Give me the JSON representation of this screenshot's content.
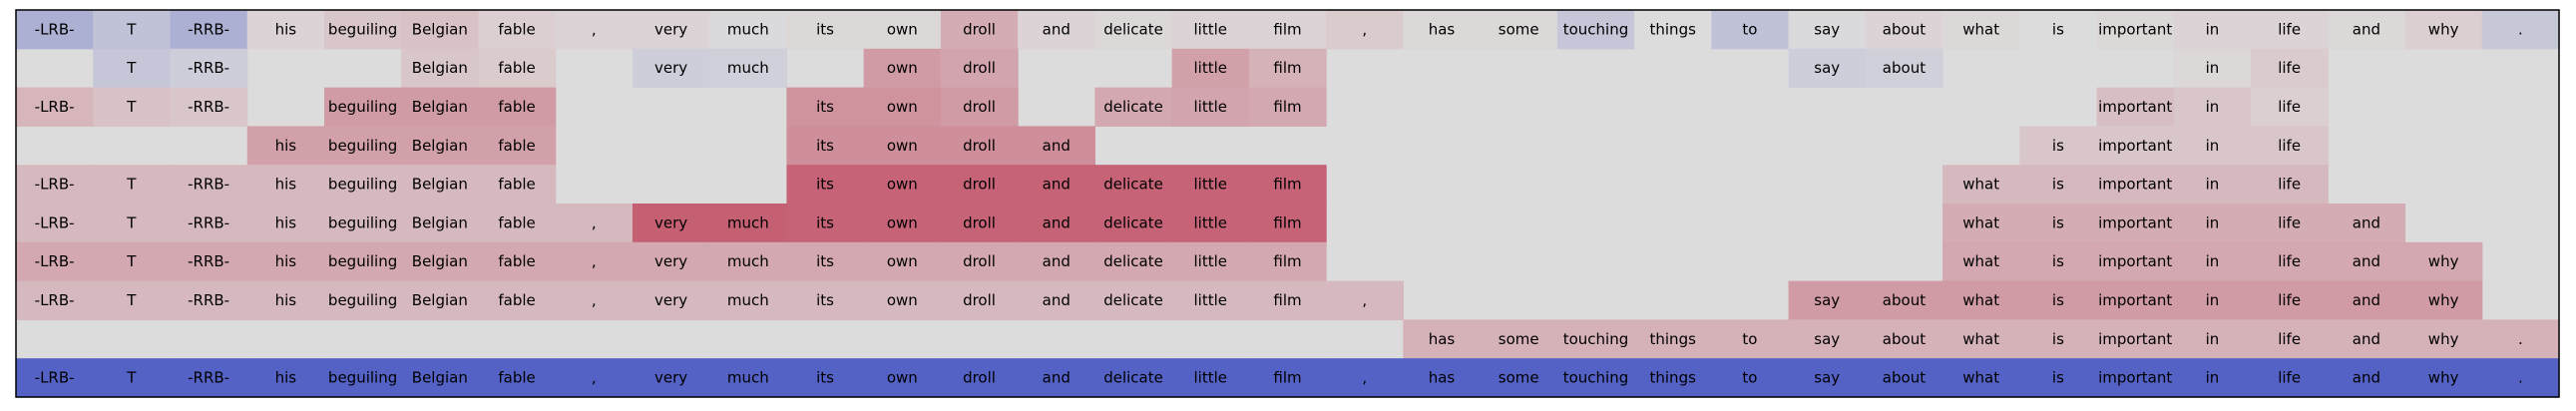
{
  "chart_data": {
    "type": "heatmap",
    "tokens": [
      "-LRB-",
      "T",
      "-RRB-",
      "his",
      "beguiling",
      "Belgian",
      "fable",
      ",",
      "very",
      "much",
      "its",
      "own",
      "droll",
      "and",
      "delicate",
      "little",
      "film",
      ",",
      "has",
      "some",
      "touching",
      "things",
      "to",
      "say",
      "about",
      "what",
      "is",
      "important",
      "in",
      "life",
      "and",
      "why",
      "."
    ],
    "rows": [
      {
        "visible": [
          1,
          1,
          1,
          1,
          1,
          1,
          1,
          1,
          1,
          1,
          1,
          1,
          1,
          1,
          1,
          1,
          1,
          1,
          1,
          1,
          1,
          1,
          1,
          1,
          1,
          1,
          1,
          1,
          1,
          1,
          1,
          1,
          1
        ],
        "scores": [
          -0.3,
          -0.18,
          -0.3,
          0.04,
          0.1,
          0.12,
          0.06,
          0.04,
          0.04,
          -0.02,
          0.02,
          0.02,
          0.22,
          0.04,
          0.02,
          0.04,
          0.04,
          0.08,
          0.02,
          0.02,
          -0.15,
          0.0,
          -0.18,
          -0.02,
          0.04,
          0.02,
          0.0,
          0.02,
          0.04,
          0.04,
          0.02,
          0.06,
          -0.14
        ]
      },
      {
        "visible": [
          0,
          1,
          1,
          0,
          0,
          1,
          1,
          0,
          1,
          1,
          0,
          1,
          1,
          0,
          0,
          1,
          1,
          0,
          0,
          0,
          0,
          0,
          0,
          1,
          1,
          0,
          0,
          0,
          1,
          1,
          0,
          0,
          0
        ],
        "scores": [
          0,
          -0.15,
          -0.1,
          0,
          0,
          0.1,
          0.08,
          0,
          -0.1,
          -0.08,
          0,
          0.3,
          0.26,
          0,
          0,
          0.28,
          0.2,
          0,
          0,
          0,
          0,
          0,
          0,
          -0.1,
          -0.08,
          0,
          0,
          0,
          0.02,
          0.08,
          0,
          0,
          0
        ]
      },
      {
        "visible": [
          1,
          1,
          1,
          0,
          1,
          1,
          1,
          0,
          0,
          0,
          1,
          1,
          1,
          0,
          1,
          1,
          1,
          0,
          0,
          0,
          0,
          0,
          0,
          0,
          0,
          0,
          0,
          1,
          1,
          1,
          0,
          0,
          0
        ],
        "scores": [
          0.18,
          0.12,
          0.1,
          0,
          0.3,
          0.3,
          0.3,
          0,
          0,
          0,
          0.34,
          0.34,
          0.3,
          0,
          0.24,
          0.26,
          0.24,
          0,
          0,
          0,
          0,
          0,
          0,
          0,
          0,
          0,
          0,
          0.14,
          0.1,
          0.06,
          0,
          0,
          0
        ]
      },
      {
        "visible": [
          0,
          0,
          0,
          1,
          1,
          1,
          1,
          0,
          0,
          0,
          1,
          1,
          1,
          1,
          0,
          0,
          0,
          0,
          0,
          0,
          0,
          0,
          0,
          0,
          0,
          0,
          1,
          1,
          1,
          1,
          0,
          0,
          0
        ],
        "scores": [
          0,
          0,
          0,
          0.28,
          0.28,
          0.28,
          0.28,
          0,
          0,
          0,
          0.36,
          0.36,
          0.36,
          0.36,
          0,
          0,
          0,
          0,
          0,
          0,
          0,
          0,
          0,
          0,
          0,
          0,
          0.1,
          0.1,
          0.1,
          0.1,
          0,
          0,
          0
        ]
      },
      {
        "visible": [
          1,
          1,
          1,
          1,
          1,
          1,
          1,
          0,
          0,
          0,
          1,
          1,
          1,
          1,
          1,
          1,
          1,
          0,
          0,
          0,
          0,
          0,
          0,
          0,
          0,
          1,
          1,
          1,
          1,
          1,
          0,
          0,
          0
        ],
        "scores": [
          0.16,
          0.16,
          0.16,
          0.16,
          0.16,
          0.16,
          0.16,
          0,
          0,
          0,
          0.56,
          0.56,
          0.56,
          0.56,
          0.56,
          0.56,
          0.56,
          0,
          0,
          0,
          0,
          0,
          0,
          0,
          0,
          0.16,
          0.16,
          0.16,
          0.16,
          0.16,
          0,
          0,
          0
        ]
      },
      {
        "visible": [
          1,
          1,
          1,
          1,
          1,
          1,
          1,
          1,
          1,
          1,
          1,
          1,
          1,
          1,
          1,
          1,
          1,
          0,
          0,
          0,
          0,
          0,
          0,
          0,
          0,
          1,
          1,
          1,
          1,
          1,
          1,
          0,
          0
        ],
        "scores": [
          0.16,
          0.16,
          0.16,
          0.16,
          0.16,
          0.16,
          0.16,
          0.16,
          0.58,
          0.58,
          0.56,
          0.56,
          0.56,
          0.56,
          0.56,
          0.56,
          0.56,
          0,
          0,
          0,
          0,
          0,
          0,
          0,
          0,
          0.22,
          0.22,
          0.22,
          0.22,
          0.22,
          0.22,
          0,
          0
        ]
      },
      {
        "visible": [
          1,
          1,
          1,
          1,
          1,
          1,
          1,
          1,
          1,
          1,
          1,
          1,
          1,
          1,
          1,
          1,
          1,
          0,
          0,
          0,
          0,
          0,
          0,
          0,
          0,
          1,
          1,
          1,
          1,
          1,
          1,
          1,
          0
        ],
        "scores": [
          0.24,
          0.24,
          0.24,
          0.24,
          0.24,
          0.24,
          0.24,
          0.24,
          0.24,
          0.24,
          0.24,
          0.24,
          0.24,
          0.24,
          0.24,
          0.24,
          0.24,
          0,
          0,
          0,
          0,
          0,
          0,
          0,
          0,
          0.24,
          0.24,
          0.24,
          0.24,
          0.24,
          0.24,
          0.24,
          0
        ]
      },
      {
        "visible": [
          1,
          1,
          1,
          1,
          1,
          1,
          1,
          1,
          1,
          1,
          1,
          1,
          1,
          1,
          1,
          1,
          1,
          1,
          0,
          0,
          0,
          0,
          0,
          1,
          1,
          1,
          1,
          1,
          1,
          1,
          1,
          1,
          0
        ],
        "scores": [
          0.16,
          0.16,
          0.16,
          0.16,
          0.16,
          0.16,
          0.16,
          0.16,
          0.16,
          0.16,
          0.16,
          0.16,
          0.16,
          0.16,
          0.16,
          0.16,
          0.16,
          0.16,
          0,
          0,
          0,
          0,
          0,
          0.3,
          0.3,
          0.3,
          0.3,
          0.3,
          0.3,
          0.3,
          0.3,
          0.3,
          0
        ]
      },
      {
        "visible": [
          0,
          0,
          0,
          0,
          0,
          0,
          0,
          0,
          0,
          0,
          0,
          0,
          0,
          0,
          0,
          0,
          0,
          0,
          1,
          1,
          1,
          1,
          1,
          1,
          1,
          1,
          1,
          1,
          1,
          1,
          1,
          1,
          1
        ],
        "scores": [
          0,
          0,
          0,
          0,
          0,
          0,
          0,
          0,
          0,
          0,
          0,
          0,
          0,
          0,
          0,
          0,
          0,
          0,
          0.2,
          0.2,
          0.2,
          0.2,
          0.2,
          0.2,
          0.2,
          0.2,
          0.2,
          0.2,
          0.2,
          0.2,
          0.2,
          0.2,
          0.2
        ]
      },
      {
        "visible": [
          1,
          1,
          1,
          1,
          1,
          1,
          1,
          1,
          1,
          1,
          1,
          1,
          1,
          1,
          1,
          1,
          1,
          1,
          1,
          1,
          1,
          1,
          1,
          1,
          1,
          1,
          1,
          1,
          1,
          1,
          1,
          1,
          1
        ],
        "scores": [
          -0.85,
          -0.85,
          -0.85,
          -0.85,
          -0.85,
          -0.85,
          -0.85,
          -0.85,
          -0.85,
          -0.85,
          -0.85,
          -0.85,
          -0.85,
          -0.85,
          -0.85,
          -0.85,
          -0.85,
          -0.85,
          -0.85,
          -0.85,
          -0.85,
          -0.85,
          -0.85,
          -0.85,
          -0.85,
          -0.85,
          -0.85,
          -0.85,
          -0.85,
          -0.85,
          -0.85,
          -0.85,
          -0.85
        ]
      }
    ],
    "color_scale": "coolwarm",
    "value_range": [
      -1,
      1
    ],
    "neutral_color": "#dddcdc",
    "negative_color": "#3b4cc0",
    "positive_color": "#b40426",
    "frame_color": "#000000"
  }
}
